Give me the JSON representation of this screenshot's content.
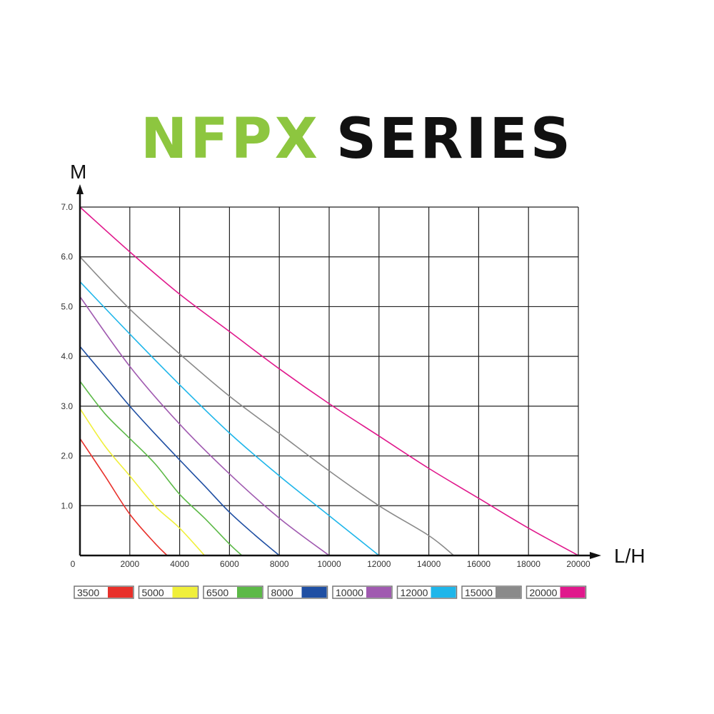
{
  "chart_data": {
    "type": "line",
    "title_part1": "NFPX",
    "title_part2": "SERIES",
    "title_colors": {
      "part1": "#8dc63f",
      "part2": "#111111"
    },
    "xlabel": "L/H",
    "ylabel": "M",
    "xlim": [
      0,
      20000
    ],
    "ylim": [
      0,
      7
    ],
    "grid": true,
    "legend_placement": "bottom",
    "x_ticks": [
      "0",
      "2000",
      "4000",
      "6000",
      "8000",
      "10000",
      "12000",
      "14000",
      "16000",
      "18000",
      "20000"
    ],
    "y_ticks": [
      "1.0",
      "2.0",
      "3.0",
      "4.0",
      "5.0",
      "6.0",
      "7.0"
    ],
    "series": [
      {
        "name": "3500",
        "color": "#e8302a",
        "points": [
          [
            0,
            2.35
          ],
          [
            1000,
            1.6
          ],
          [
            2000,
            0.83
          ],
          [
            3000,
            0.25
          ],
          [
            3500,
            0
          ]
        ]
      },
      {
        "name": "5000",
        "color": "#f0ef3a",
        "points": [
          [
            0,
            2.95
          ],
          [
            1000,
            2.2
          ],
          [
            2000,
            1.6
          ],
          [
            3000,
            1.0
          ],
          [
            4000,
            0.55
          ],
          [
            5000,
            0
          ]
        ]
      },
      {
        "name": "6500",
        "color": "#5cb947",
        "points": [
          [
            0,
            3.5
          ],
          [
            1000,
            2.85
          ],
          [
            2000,
            2.35
          ],
          [
            3000,
            1.85
          ],
          [
            4000,
            1.23
          ],
          [
            5000,
            0.75
          ],
          [
            6000,
            0.23
          ],
          [
            6500,
            0
          ]
        ]
      },
      {
        "name": "8000",
        "color": "#1f4fa3",
        "points": [
          [
            0,
            4.2
          ],
          [
            1000,
            3.6
          ],
          [
            2000,
            3.0
          ],
          [
            3000,
            2.45
          ],
          [
            4000,
            1.92
          ],
          [
            5000,
            1.4
          ],
          [
            6000,
            0.87
          ],
          [
            7000,
            0.42
          ],
          [
            8000,
            0
          ]
        ]
      },
      {
        "name": "10000",
        "color": "#a05ab0",
        "points": [
          [
            0,
            5.2
          ],
          [
            2000,
            3.8
          ],
          [
            4000,
            2.64
          ],
          [
            6000,
            1.64
          ],
          [
            8000,
            0.75
          ],
          [
            10000,
            0
          ]
        ]
      },
      {
        "name": "12000",
        "color": "#1fb6ea",
        "points": [
          [
            0,
            5.5
          ],
          [
            2000,
            4.45
          ],
          [
            4000,
            3.43
          ],
          [
            6000,
            2.46
          ],
          [
            8000,
            1.6
          ],
          [
            10000,
            0.8
          ],
          [
            12000,
            0
          ]
        ]
      },
      {
        "name": "15000",
        "color": "#8a8a8a",
        "points": [
          [
            0,
            6.0
          ],
          [
            2000,
            4.95
          ],
          [
            4000,
            4.05
          ],
          [
            6000,
            3.2
          ],
          [
            8000,
            2.45
          ],
          [
            10000,
            1.7
          ],
          [
            12000,
            1.0
          ],
          [
            14000,
            0.4
          ],
          [
            15000,
            0
          ]
        ]
      },
      {
        "name": "20000",
        "color": "#e0188c",
        "points": [
          [
            0,
            7.0
          ],
          [
            2000,
            6.1
          ],
          [
            4000,
            5.25
          ],
          [
            6000,
            4.5
          ],
          [
            8000,
            3.75
          ],
          [
            10000,
            3.05
          ],
          [
            12000,
            2.4
          ],
          [
            14000,
            1.75
          ],
          [
            16000,
            1.15
          ],
          [
            18000,
            0.55
          ],
          [
            20000,
            0
          ]
        ]
      }
    ]
  }
}
